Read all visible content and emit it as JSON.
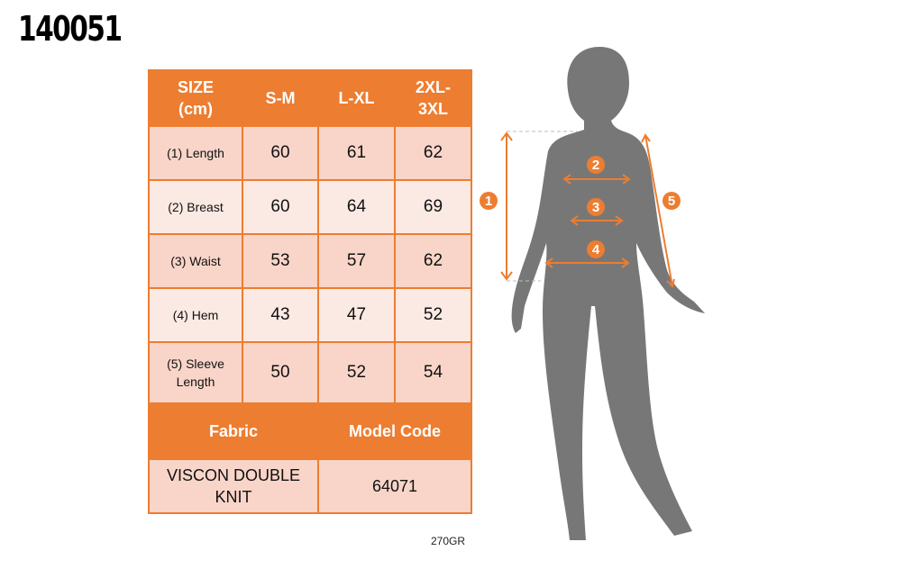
{
  "product_code": "140051",
  "table": {
    "header": [
      "SIZE (cm)",
      "S-M",
      "L-XL",
      "2XL-3XL"
    ],
    "rows": [
      {
        "label": "(1) Length",
        "values": [
          "60",
          "61",
          "62"
        ]
      },
      {
        "label": "(2) Breast",
        "values": [
          "60",
          "64",
          "69"
        ]
      },
      {
        "label": "(3) Waist",
        "values": [
          "53",
          "57",
          "62"
        ]
      },
      {
        "label": "(4) Hem",
        "values": [
          "43",
          "47",
          "52"
        ]
      },
      {
        "label": "(5) Sleeve Length",
        "values": [
          "50",
          "52",
          "54"
        ]
      }
    ],
    "fabric_label": "Fabric",
    "model_code_label": "Model Code",
    "fabric": "VISCON DOUBLE KNIT",
    "model_code": "64071"
  },
  "weight": "270GR",
  "diagram": {
    "markers": [
      "1",
      "2",
      "3",
      "4",
      "5"
    ],
    "accent": "#ED7D31",
    "silhouette": "#777777"
  }
}
